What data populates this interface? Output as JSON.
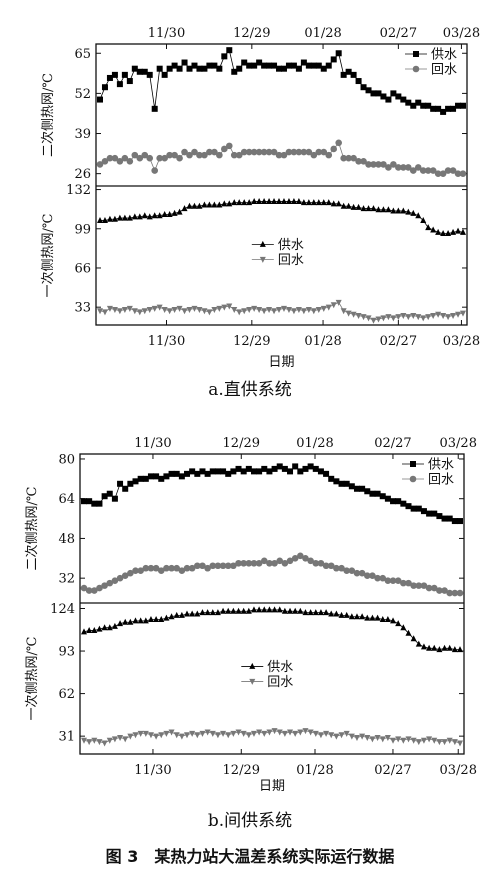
{
  "figure_caption": "图 3　某热力站大温差系统实际运行数据",
  "chart_data": [
    {
      "id": "a",
      "type": "line",
      "caption": "a.直供系统",
      "xlabel": "日期",
      "date_ticks": [
        "11/30",
        "12/29",
        "01/28",
        "02/27",
        "03/28"
      ],
      "top": {
        "ylabel": "二次侧热网/℃",
        "yticks": [
          "65",
          "52",
          "39",
          "26"
        ],
        "ylim": [
          22,
          68
        ],
        "legend_position": "top-right",
        "series": [
          {
            "name": "供水",
            "marker": "square",
            "color": "#000000",
            "values": [
              50,
              54,
              57,
              58,
              55,
              58,
              56,
              60,
              59,
              59,
              58,
              47,
              60,
              58,
              60,
              61,
              60,
              62,
              60,
              61,
              60,
              60,
              61,
              61,
              60,
              64,
              66,
              59,
              60,
              62,
              61,
              61,
              62,
              61,
              61,
              61,
              60,
              60,
              61,
              61,
              60,
              62,
              61,
              61,
              61,
              60,
              61,
              63,
              65,
              58,
              59,
              58,
              56,
              54,
              53,
              52,
              52,
              51,
              50,
              52,
              51,
              50,
              49,
              48,
              49,
              48,
              48,
              47,
              47,
              46,
              47,
              47,
              48,
              48
            ]
          },
          {
            "name": "回水",
            "marker": "circle",
            "color": "#777777",
            "values": [
              29,
              30,
              31,
              31,
              30,
              31,
              30,
              32,
              31,
              32,
              31,
              27,
              31,
              31,
              32,
              32,
              31,
              33,
              32,
              33,
              32,
              32,
              33,
              33,
              32,
              34,
              35,
              32,
              32,
              33,
              33,
              33,
              33,
              33,
              33,
              33,
              32,
              32,
              33,
              33,
              33,
              33,
              33,
              32,
              33,
              33,
              32,
              34,
              36,
              31,
              31,
              31,
              30,
              30,
              29,
              29,
              29,
              29,
              28,
              29,
              28,
              28,
              28,
              27,
              28,
              27,
              27,
              27,
              26,
              26,
              27,
              27,
              26,
              26
            ]
          }
        ]
      },
      "bottom": {
        "ylabel": "一次侧热网/℃",
        "yticks": [
          "132",
          "99",
          "66",
          "33"
        ],
        "ylim": [
          18,
          135
        ],
        "legend_position": "center",
        "series": [
          {
            "name": "供水",
            "marker": "triangle-up",
            "color": "#000000",
            "values": [
              106,
              106,
              107,
              107,
              108,
              108,
              108,
              109,
              109,
              110,
              109,
              110,
              110,
              111,
              111,
              112,
              113,
              116,
              118,
              118,
              118,
              119,
              119,
              119,
              119,
              120,
              120,
              121,
              121,
              121,
              121,
              122,
              122,
              122,
              122,
              122,
              122,
              122,
              122,
              122,
              122,
              121,
              121,
              121,
              121,
              121,
              121,
              120,
              120,
              118,
              118,
              117,
              117,
              116,
              116,
              116,
              115,
              115,
              115,
              114,
              114,
              114,
              113,
              112,
              110,
              106,
              100,
              98,
              96,
              95,
              95,
              96,
              97,
              96
            ]
          },
          {
            "name": "回水",
            "marker": "triangle-down",
            "color": "#777777",
            "values": [
              30,
              29,
              32,
              31,
              30,
              31,
              32,
              30,
              29,
              30,
              31,
              32,
              33,
              31,
              30,
              31,
              32,
              30,
              31,
              32,
              31,
              30,
              29,
              31,
              32,
              33,
              34,
              31,
              29,
              30,
              31,
              32,
              31,
              30,
              31,
              30,
              31,
              32,
              31,
              30,
              31,
              30,
              31,
              30,
              31,
              32,
              33,
              35,
              37,
              30,
              28,
              27,
              26,
              25,
              24,
              22,
              23,
              24,
              25,
              24,
              25,
              26,
              25,
              26,
              25,
              24,
              25,
              26,
              27,
              26,
              25,
              26,
              27,
              28
            ]
          }
        ]
      }
    },
    {
      "id": "b",
      "type": "line",
      "caption": "b.间供系统",
      "xlabel": "日期",
      "date_ticks": [
        "11/30",
        "12/29",
        "01/28",
        "02/27",
        "03/28"
      ],
      "top": {
        "ylabel": "二次侧热网/℃",
        "yticks": [
          "80",
          "64",
          "48",
          "32"
        ],
        "ylim": [
          22,
          82
        ],
        "legend_position": "top-right",
        "series": [
          {
            "name": "供水",
            "marker": "square",
            "color": "#000000",
            "values": [
              63,
              63,
              62,
              62,
              65,
              66,
              64,
              70,
              68,
              70,
              71,
              72,
              72,
              73,
              73,
              72,
              73,
              74,
              74,
              73,
              74,
              75,
              74,
              75,
              74,
              75,
              75,
              75,
              74,
              75,
              76,
              75,
              76,
              75,
              75,
              76,
              75,
              76,
              77,
              76,
              75,
              77,
              75,
              76,
              77,
              76,
              75,
              74,
              72,
              71,
              70,
              70,
              69,
              68,
              68,
              67,
              66,
              66,
              65,
              64,
              63,
              63,
              62,
              61,
              60,
              60,
              59,
              58,
              58,
              57,
              56,
              56,
              55,
              55
            ]
          },
          {
            "name": "回水",
            "marker": "circle",
            "color": "#777777",
            "values": [
              28,
              27,
              27,
              28,
              29,
              30,
              31,
              32,
              33,
              34,
              35,
              35,
              36,
              36,
              36,
              35,
              36,
              36,
              36,
              35,
              36,
              36,
              37,
              37,
              36,
              37,
              37,
              37,
              37,
              37,
              38,
              38,
              38,
              38,
              38,
              39,
              38,
              38,
              39,
              38,
              39,
              40,
              41,
              40,
              39,
              38,
              38,
              37,
              37,
              36,
              36,
              35,
              35,
              34,
              34,
              33,
              33,
              32,
              32,
              31,
              31,
              31,
              30,
              30,
              29,
              29,
              29,
              28,
              28,
              27,
              27,
              26,
              26,
              26
            ]
          }
        ]
      },
      "bottom": {
        "ylabel": "一次侧热网/℃",
        "yticks": [
          "124",
          "93",
          "62",
          "31"
        ],
        "ylim": [
          18,
          128
        ],
        "legend_position": "center",
        "series": [
          {
            "name": "供水",
            "marker": "triangle-up",
            "color": "#000000",
            "values": [
              107,
              108,
              108,
              109,
              110,
              110,
              111,
              113,
              114,
              114,
              115,
              115,
              115,
              116,
              116,
              116,
              117,
              118,
              119,
              119,
              120,
              120,
              120,
              121,
              121,
              121,
              121,
              122,
              122,
              122,
              122,
              122,
              122,
              123,
              123,
              123,
              123,
              123,
              123,
              122,
              122,
              122,
              122,
              121,
              121,
              121,
              121,
              121,
              120,
              120,
              119,
              119,
              118,
              118,
              118,
              117,
              117,
              117,
              116,
              116,
              115,
              113,
              110,
              106,
              102,
              98,
              96,
              95,
              95,
              94,
              95,
              95,
              94,
              94
            ]
          },
          {
            "name": "回水",
            "marker": "triangle-down",
            "color": "#777777",
            "values": [
              28,
              27,
              28,
              27,
              26,
              28,
              29,
              30,
              29,
              31,
              32,
              33,
              33,
              32,
              31,
              32,
              33,
              34,
              32,
              31,
              32,
              33,
              32,
              33,
              34,
              33,
              32,
              33,
              32,
              33,
              34,
              33,
              32,
              33,
              34,
              33,
              34,
              35,
              34,
              33,
              34,
              33,
              34,
              35,
              34,
              33,
              32,
              33,
              32,
              31,
              32,
              33,
              31,
              30,
              31,
              30,
              29,
              30,
              29,
              30,
              28,
              29,
              28,
              29,
              28,
              27,
              28,
              29,
              28,
              27,
              27,
              28,
              27,
              26
            ]
          }
        ]
      }
    }
  ]
}
